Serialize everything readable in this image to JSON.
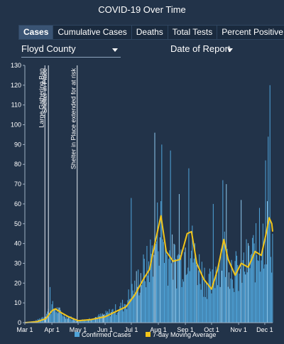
{
  "header": {
    "title": "COVID-19 Over Time"
  },
  "tabs": [
    {
      "label": "Cases",
      "active": true
    },
    {
      "label": "Cumulative Cases",
      "active": false
    },
    {
      "label": "Deaths",
      "active": false
    },
    {
      "label": "Total Tests",
      "active": false
    },
    {
      "label": "Percent Positive",
      "active": false
    }
  ],
  "filters": {
    "county": "Floyd County",
    "date_type": "Date of Report"
  },
  "colors": {
    "bars": "#4fa3d8",
    "bars_light": "#8cc6ea",
    "line": "#f2c419",
    "axis": "#9fb0c3",
    "background": "#223349"
  },
  "chart_data": {
    "type": "bar",
    "title": "",
    "xlabel": "",
    "ylabel": "",
    "ylim": [
      0,
      130
    ],
    "yticks": [
      0,
      10,
      20,
      30,
      40,
      50,
      60,
      70,
      80,
      90,
      100,
      110,
      120,
      130
    ],
    "x_start": "2020-03-01",
    "x_end": "2020-12-10",
    "xticks": [
      {
        "label": "Mar 1",
        "date": "2020-03-01"
      },
      {
        "label": "Apr 1",
        "date": "2020-04-01"
      },
      {
        "label": "May 1",
        "date": "2020-05-01"
      },
      {
        "label": "Jun 1",
        "date": "2020-06-01"
      },
      {
        "label": "Jul 1",
        "date": "2020-07-01"
      },
      {
        "label": "Aug 1",
        "date": "2020-08-01"
      },
      {
        "label": "Sep 1",
        "date": "2020-09-01"
      },
      {
        "label": "Oct 1",
        "date": "2020-10-01"
      },
      {
        "label": "Nov 1",
        "date": "2020-11-01"
      },
      {
        "label": "Dec 1",
        "date": "2020-12-01"
      }
    ],
    "annotations": [
      {
        "date": "2020-03-24",
        "text": "Large Gathering Ban"
      },
      {
        "date": "2020-03-28",
        "text": "Shelter in Place"
      },
      {
        "date": "2020-04-30",
        "text": "Shelter in Place extended for at risk"
      }
    ],
    "legend": {
      "position": "bottom",
      "items": [
        {
          "label": "Confirmed Cases",
          "color": "#4fa3d8"
        },
        {
          "label": "7-day Moving Average",
          "color": "#f2c419"
        }
      ]
    },
    "series": [
      {
        "name": "Confirmed Cases",
        "type": "bar",
        "anchors": [
          [
            "2020-03-01",
            0
          ],
          [
            "2020-03-15",
            1
          ],
          [
            "2020-03-25",
            4
          ],
          [
            "2020-04-01",
            8
          ],
          [
            "2020-04-05",
            7
          ],
          [
            "2020-04-15",
            4
          ],
          [
            "2020-04-25",
            2
          ],
          [
            "2020-05-01",
            1
          ],
          [
            "2020-05-15",
            2
          ],
          [
            "2020-06-01",
            4
          ],
          [
            "2020-06-10",
            6
          ],
          [
            "2020-06-20",
            8
          ],
          [
            "2020-07-01",
            14
          ],
          [
            "2020-07-10",
            22
          ],
          [
            "2020-07-20",
            28
          ],
          [
            "2020-07-28",
            40
          ],
          [
            "2020-08-03",
            50
          ],
          [
            "2020-08-10",
            35
          ],
          [
            "2020-08-20",
            30
          ],
          [
            "2020-08-28",
            32
          ],
          [
            "2020-09-05",
            42
          ],
          [
            "2020-09-12",
            32
          ],
          [
            "2020-09-20",
            25
          ],
          [
            "2020-10-01",
            18
          ],
          [
            "2020-10-08",
            30
          ],
          [
            "2020-10-15",
            36
          ],
          [
            "2020-10-25",
            28
          ],
          [
            "2020-11-01",
            24
          ],
          [
            "2020-11-10",
            30
          ],
          [
            "2020-11-18",
            34
          ],
          [
            "2020-11-25",
            36
          ],
          [
            "2020-12-02",
            48
          ],
          [
            "2020-12-06",
            46
          ],
          [
            "2020-12-10",
            40
          ]
        ],
        "spikes": [
          [
            "2020-03-30",
            18
          ],
          [
            "2020-07-01",
            63
          ],
          [
            "2020-07-28",
            96
          ],
          [
            "2020-08-05",
            90
          ],
          [
            "2020-08-15",
            87
          ],
          [
            "2020-08-25",
            65
          ],
          [
            "2020-09-05",
            78
          ],
          [
            "2020-10-03",
            60
          ],
          [
            "2020-10-14",
            72
          ],
          [
            "2020-10-18",
            70
          ],
          [
            "2020-11-04",
            62
          ],
          [
            "2020-11-25",
            58
          ],
          [
            "2020-12-02",
            82
          ],
          [
            "2020-12-05",
            94
          ],
          [
            "2020-12-07",
            120
          ]
        ]
      },
      {
        "name": "7-day Moving Average",
        "type": "line",
        "values": [
          [
            "2020-03-01",
            0
          ],
          [
            "2020-03-15",
            0.5
          ],
          [
            "2020-03-25",
            2
          ],
          [
            "2020-04-01",
            6
          ],
          [
            "2020-04-05",
            7
          ],
          [
            "2020-04-12",
            5
          ],
          [
            "2020-04-20",
            3
          ],
          [
            "2020-05-01",
            1
          ],
          [
            "2020-05-15",
            1.5
          ],
          [
            "2020-06-01",
            3
          ],
          [
            "2020-06-15",
            6
          ],
          [
            "2020-06-25",
            8
          ],
          [
            "2020-07-05",
            14
          ],
          [
            "2020-07-15",
            22
          ],
          [
            "2020-07-22",
            27
          ],
          [
            "2020-07-28",
            40
          ],
          [
            "2020-08-04",
            54
          ],
          [
            "2020-08-10",
            36
          ],
          [
            "2020-08-18",
            31
          ],
          [
            "2020-08-26",
            32
          ],
          [
            "2020-09-03",
            45
          ],
          [
            "2020-09-08",
            46
          ],
          [
            "2020-09-14",
            30
          ],
          [
            "2020-09-22",
            22
          ],
          [
            "2020-10-01",
            17
          ],
          [
            "2020-10-08",
            27
          ],
          [
            "2020-10-15",
            42
          ],
          [
            "2020-10-20",
            32
          ],
          [
            "2020-10-28",
            24
          ],
          [
            "2020-11-04",
            30
          ],
          [
            "2020-11-12",
            28
          ],
          [
            "2020-11-20",
            36
          ],
          [
            "2020-11-27",
            34
          ],
          [
            "2020-12-02",
            44
          ],
          [
            "2020-12-06",
            53
          ],
          [
            "2020-12-09",
            50
          ],
          [
            "2020-12-10",
            46
          ]
        ]
      }
    ]
  }
}
